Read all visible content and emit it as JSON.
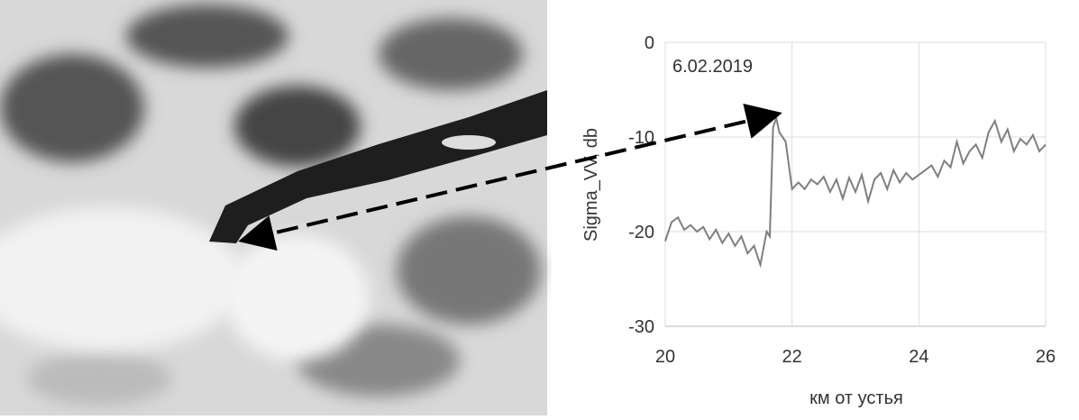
{
  "chart_data": {
    "type": "line",
    "annotation": "6.02.2019",
    "x_label": "км от устья",
    "y_label": "Sigma_VV, db",
    "xlim": [
      20,
      26
    ],
    "xticks": [
      20,
      22,
      24,
      26
    ],
    "ylim": [
      -30,
      0
    ],
    "yticks": [
      -30,
      -20,
      -10,
      0
    ],
    "grid": true,
    "series": [
      {
        "color": "#7f7f7f",
        "x": [
          20,
          20.1,
          20.2,
          20.3,
          20.4,
          20.5,
          20.6,
          20.7,
          20.8,
          20.9,
          21,
          21.1,
          21.2,
          21.3,
          21.4,
          21.5,
          21.6,
          21.65,
          21.7,
          21.75,
          21.8,
          21.9,
          22,
          22.1,
          22.2,
          22.3,
          22.4,
          22.5,
          22.6,
          22.7,
          22.8,
          22.9,
          23,
          23.1,
          23.2,
          23.3,
          23.4,
          23.5,
          23.6,
          23.7,
          23.8,
          23.9,
          24,
          24.1,
          24.2,
          24.3,
          24.4,
          24.5,
          24.6,
          24.7,
          24.8,
          24.9,
          25,
          25.1,
          25.2,
          25.3,
          25.4,
          25.5,
          25.6,
          25.7,
          25.8,
          25.9,
          26
        ],
        "values": [
          -21,
          -19,
          -18.5,
          -19.8,
          -19.3,
          -20,
          -19.5,
          -20.8,
          -19.8,
          -21.2,
          -20.2,
          -21.5,
          -20.5,
          -22.3,
          -21.5,
          -23.5,
          -20,
          -20.5,
          -9,
          -8,
          -9.5,
          -10.5,
          -15.5,
          -14.8,
          -15.5,
          -14.5,
          -15,
          -14.2,
          -15.8,
          -14.5,
          -16.5,
          -14.3,
          -15.8,
          -14,
          -16.8,
          -14.5,
          -13.8,
          -15.5,
          -13.5,
          -14.8,
          -13.8,
          -14.5,
          -14,
          -13.5,
          -13,
          -14.2,
          -12.5,
          -13.2,
          -10.5,
          -12.8,
          -11.5,
          -10.8,
          -12.2,
          -9.5,
          -8.3,
          -10.5,
          -9.2,
          -11.5,
          -10.2,
          -10.8,
          -9.8,
          -11.5,
          -10.8
        ]
      }
    ]
  }
}
